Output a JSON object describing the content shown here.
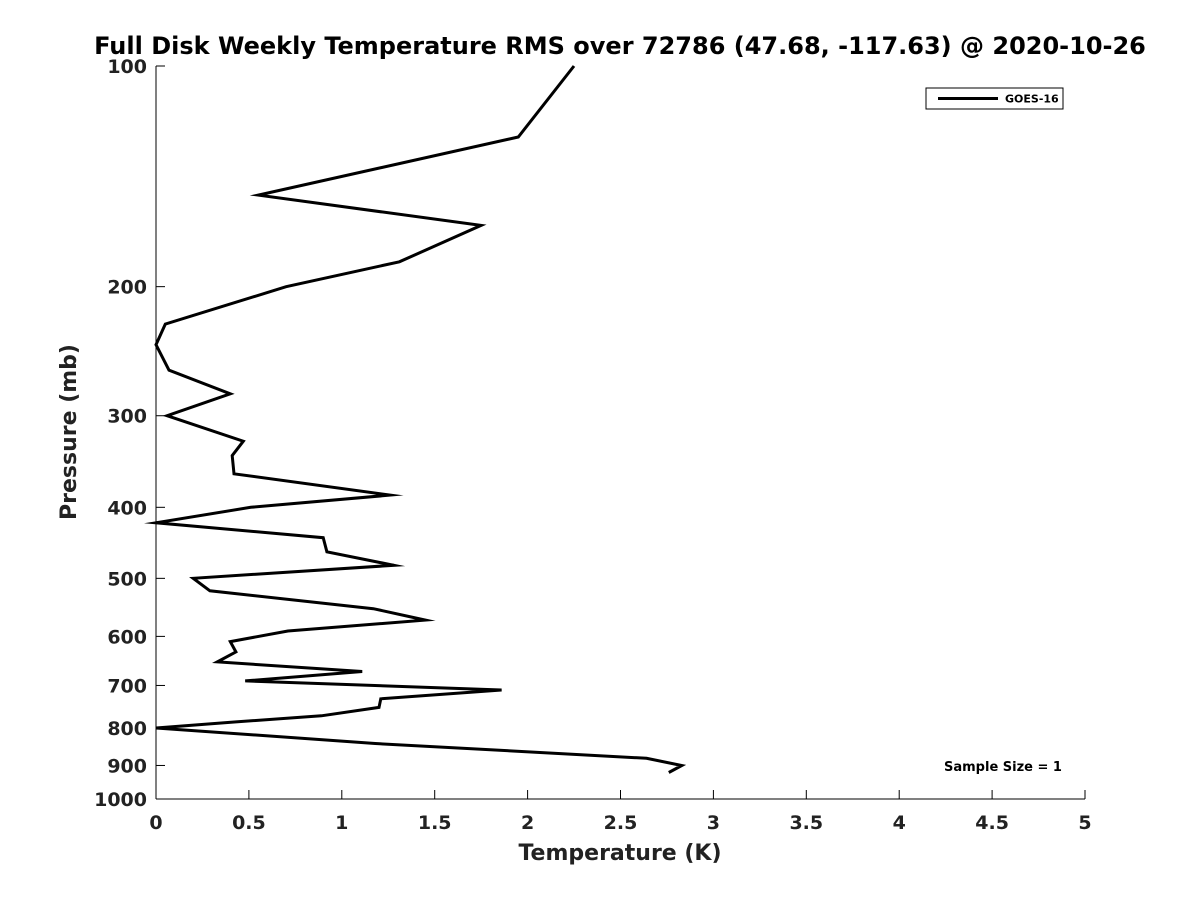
{
  "chart_data": {
    "type": "line",
    "title": "Full Disk Weekly Temperature RMS over 72786 (47.68, -117.63) @ 2020-10-26",
    "xlabel": "Temperature (K)",
    "ylabel": "Pressure (mb)",
    "xlim": [
      0,
      5
    ],
    "ylim": [
      1000,
      100
    ],
    "y_scale": "log",
    "y_reversed": true,
    "grid": false,
    "legend_position": "top-right",
    "x_ticks": [
      "0",
      "0.5",
      "1",
      "1.5",
      "2",
      "2.5",
      "3",
      "3.5",
      "4",
      "4.5",
      "5"
    ],
    "y_ticks": [
      "100",
      "200",
      "300",
      "400",
      "500",
      "600",
      "700",
      "800",
      "900",
      "1000"
    ],
    "series": [
      {
        "name": "GOES-16",
        "color": "#000000",
        "points": [
          [
            2.25,
            100
          ],
          [
            1.95,
            125
          ],
          [
            0.55,
            150
          ],
          [
            1.75,
            165
          ],
          [
            1.31,
            185
          ],
          [
            0.7,
            200
          ],
          [
            0.05,
            225
          ],
          [
            0.0,
            240
          ],
          [
            0.07,
            260
          ],
          [
            0.4,
            280
          ],
          [
            0.06,
            300
          ],
          [
            0.47,
            325
          ],
          [
            0.41,
            340
          ],
          [
            0.42,
            360
          ],
          [
            1.26,
            385
          ],
          [
            0.51,
            400
          ],
          [
            0.0,
            420
          ],
          [
            0.9,
            440
          ],
          [
            0.92,
            460
          ],
          [
            1.28,
            480
          ],
          [
            0.2,
            500
          ],
          [
            0.29,
            520
          ],
          [
            1.17,
            550
          ],
          [
            1.45,
            570
          ],
          [
            0.71,
            590
          ],
          [
            0.4,
            610
          ],
          [
            0.43,
            630
          ],
          [
            0.33,
            650
          ],
          [
            1.11,
            670
          ],
          [
            0.48,
            690
          ],
          [
            1.86,
            710
          ],
          [
            1.21,
            730
          ],
          [
            1.2,
            750
          ],
          [
            0.89,
            770
          ],
          [
            0.43,
            785
          ],
          [
            0.0,
            800
          ],
          [
            1.18,
            840
          ],
          [
            2.64,
            880
          ],
          [
            2.83,
            900
          ],
          [
            2.76,
            920
          ]
        ]
      }
    ],
    "annotations": [
      "Sample Size = 1"
    ]
  }
}
